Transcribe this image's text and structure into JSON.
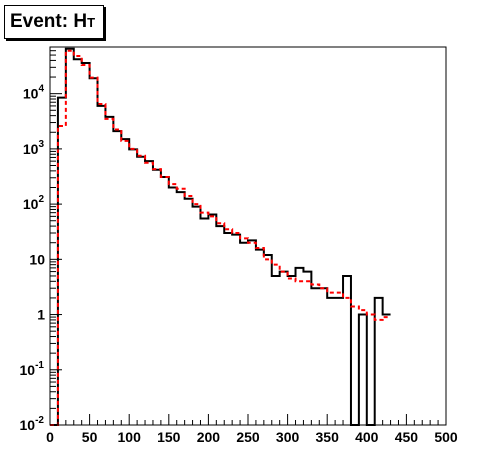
{
  "chart_data": {
    "type": "line",
    "title": "Event: H",
    "title_subscript": "T",
    "xlabel": "",
    "ylabel": "",
    "xlim": [
      0,
      500
    ],
    "ylim": [
      0.01,
      70000
    ],
    "yscale": "log",
    "grid": false,
    "bin_width": 10,
    "x_ticks": [
      0,
      50,
      100,
      150,
      200,
      250,
      300,
      350,
      400,
      450,
      500
    ],
    "x_tick_labels": [
      "0",
      "50",
      "100",
      "150",
      "200",
      "250",
      "300",
      "350",
      "400",
      "450",
      "500"
    ],
    "y_ticks": [
      0.01,
      0.1,
      1,
      10,
      100,
      1000,
      10000
    ],
    "y_tick_labels": [
      {
        "base": "10",
        "exp": "-2"
      },
      {
        "base": "10",
        "exp": "-1"
      },
      {
        "base": "1",
        "exp": ""
      },
      {
        "base": "10",
        "exp": ""
      },
      {
        "base": "10",
        "exp": "2"
      },
      {
        "base": "10",
        "exp": "3"
      },
      {
        "base": "10",
        "exp": "4"
      }
    ],
    "series": [
      {
        "color": "#000000",
        "style": "solid",
        "values": [
          0,
          8500,
          65000,
          42000,
          36000,
          19000,
          6000,
          3800,
          2100,
          1500,
          980,
          720,
          600,
          420,
          310,
          200,
          165,
          125,
          90,
          55,
          65,
          40,
          30,
          28,
          20,
          22,
          15,
          12,
          5,
          6,
          5,
          7,
          6,
          3,
          3,
          2,
          2,
          5,
          0.005,
          1,
          0.005,
          2,
          1
        ]
      },
      {
        "color": "#ff0000",
        "style": "dashed",
        "values": [
          0,
          2600,
          60000,
          48000,
          33000,
          19500,
          6500,
          3500,
          2250,
          1400,
          1000,
          750,
          560,
          430,
          310,
          230,
          190,
          140,
          100,
          70,
          60,
          45,
          35,
          30,
          24,
          20,
          16,
          10,
          8,
          6,
          4.5,
          4,
          4,
          3.5,
          3,
          2.5,
          2.5,
          2,
          1.4,
          1.2,
          1,
          0.8,
          0.9
        ]
      }
    ]
  }
}
